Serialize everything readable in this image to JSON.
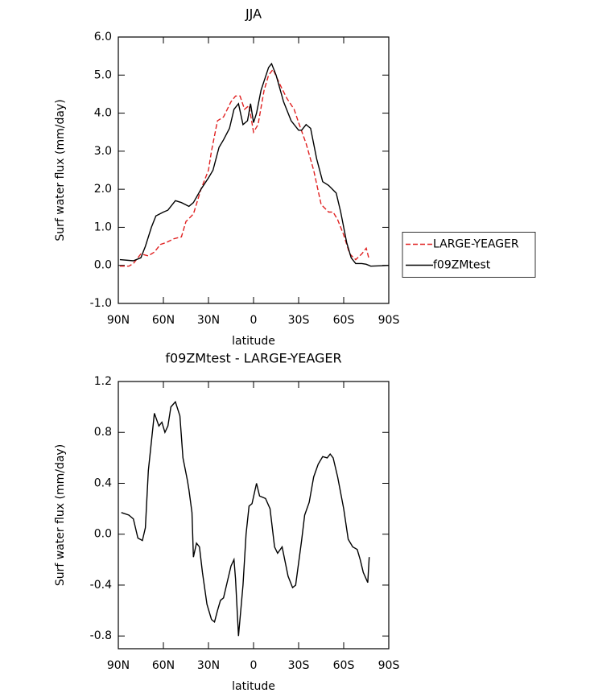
{
  "chart_data": [
    {
      "type": "line",
      "title": "JJA",
      "xlabel": "latitude",
      "ylabel": "Surf water flux (mm/day)",
      "xlim": [
        90,
        -90
      ],
      "ylim": [
        -1.0,
        6.0
      ],
      "xticks": [
        {
          "value": 90,
          "label": "90N"
        },
        {
          "value": 60,
          "label": "60N"
        },
        {
          "value": 30,
          "label": "30N"
        },
        0,
        {
          "value": -30,
          "label": "30S"
        },
        {
          "value": -60,
          "label": "60S"
        },
        {
          "value": -90,
          "label": "90S"
        }
      ],
      "yticks": [
        {
          "value": -1.0,
          "label": "-1.0"
        },
        {
          "value": 0,
          "label": "0.0"
        },
        {
          "value": 1.0,
          "label": "1.0"
        },
        {
          "value": 2.0,
          "label": "2.0"
        },
        {
          "value": 3.0,
          "label": "3.0"
        },
        {
          "value": 4.0,
          "label": "4.0"
        },
        {
          "value": 5.0,
          "label": "5.0"
        },
        {
          "value": 6.0,
          "label": "6.0"
        }
      ],
      "legend": "right",
      "series": [
        {
          "name": "LARGE-YEAGER",
          "color": "#e02020",
          "linestyle": "dashed",
          "x": [
            89,
            83,
            80,
            75,
            70,
            66,
            62,
            58,
            53,
            48,
            45,
            40,
            35,
            30,
            28,
            24,
            20,
            15,
            12,
            9,
            6,
            3,
            0,
            -3,
            -7,
            -10,
            -13,
            -17,
            -22,
            -27,
            -30,
            -35,
            -40,
            -45,
            -50,
            -53,
            -56,
            -60,
            -64,
            -68,
            -72,
            -75,
            -77
          ],
          "values": [
            -0.02,
            -0.02,
            0.05,
            0.3,
            0.25,
            0.35,
            0.55,
            0.6,
            0.7,
            0.75,
            1.15,
            1.35,
            2.0,
            2.5,
            3.0,
            3.8,
            3.9,
            4.3,
            4.45,
            4.45,
            4.1,
            4.2,
            3.5,
            3.7,
            4.6,
            5.0,
            5.15,
            4.8,
            4.4,
            4.1,
            3.75,
            3.2,
            2.5,
            1.6,
            1.4,
            1.4,
            1.2,
            0.8,
            0.3,
            0.15,
            0.3,
            0.45,
            0.15
          ]
        },
        {
          "name": "f09ZMtest",
          "color": "#000000",
          "linestyle": "solid",
          "x": [
            89,
            80,
            75,
            72,
            68,
            65,
            60,
            57,
            52,
            48,
            43,
            40,
            35,
            30,
            27,
            23,
            20,
            16,
            13,
            10,
            7,
            4,
            2,
            0,
            -2,
            -5,
            -10,
            -12,
            -15,
            -20,
            -25,
            -30,
            -32,
            -35,
            -38,
            -42,
            -46,
            -50,
            -55,
            -58,
            -62,
            -65,
            -68,
            -72,
            -75,
            -78,
            -85,
            -90
          ],
          "values": [
            0.15,
            0.12,
            0.2,
            0.5,
            1.0,
            1.3,
            1.4,
            1.45,
            1.7,
            1.65,
            1.55,
            1.65,
            2.0,
            2.3,
            2.5,
            3.1,
            3.3,
            3.6,
            4.1,
            4.25,
            3.7,
            3.8,
            4.25,
            3.75,
            4.0,
            4.6,
            5.2,
            5.3,
            5.0,
            4.3,
            3.8,
            3.55,
            3.55,
            3.7,
            3.6,
            2.8,
            2.2,
            2.1,
            1.9,
            1.4,
            0.6,
            0.2,
            0.05,
            0.05,
            0.03,
            -0.02,
            -0.01,
            0
          ]
        }
      ]
    },
    {
      "type": "line",
      "title": "f09ZMtest - LARGE-YEAGER",
      "xlabel": "latitude",
      "ylabel": "Surf water flux (mm/day)",
      "xlim": [
        90,
        -90
      ],
      "ylim": [
        -0.9,
        1.2
      ],
      "xticks": [
        {
          "value": 90,
          "label": "90N"
        },
        {
          "value": 60,
          "label": "60N"
        },
        {
          "value": 30,
          "label": "30N"
        },
        0,
        {
          "value": -30,
          "label": "30S"
        },
        {
          "value": -60,
          "label": "60S"
        },
        {
          "value": -90,
          "label": "90S"
        }
      ],
      "yticks": [
        -0.8,
        -0.4,
        {
          "value": 0,
          "label": "0.0"
        },
        0.4,
        0.8,
        1.2
      ],
      "series": [
        {
          "color": "#000000",
          "linestyle": "solid",
          "x": [
            88,
            83,
            80,
            77,
            74,
            72,
            70,
            66,
            63,
            61,
            59,
            57,
            55,
            52,
            49,
            47,
            44,
            43,
            41,
            40,
            38,
            36,
            34,
            31,
            28,
            26,
            24,
            22,
            20,
            18,
            15,
            13,
            12,
            10,
            7,
            5,
            3,
            1,
            -2,
            -4,
            -8,
            -11,
            -14,
            -16,
            -19,
            -23,
            -26,
            -28,
            -32,
            -34,
            -37,
            -40,
            -43,
            -46,
            -49,
            -51,
            -53,
            -56,
            -60,
            -63,
            -66,
            -69,
            -71,
            -73,
            -76,
            -77
          ],
          "values": [
            0.17,
            0.15,
            0.12,
            -0.03,
            -0.05,
            0.05,
            0.5,
            0.95,
            0.85,
            0.88,
            0.8,
            0.85,
            1.0,
            1.04,
            0.93,
            0.6,
            0.42,
            0.35,
            0.17,
            -0.18,
            -0.07,
            -0.1,
            -0.3,
            -0.55,
            -0.67,
            -0.69,
            -0.6,
            -0.52,
            -0.5,
            -0.4,
            -0.25,
            -0.2,
            -0.35,
            -0.8,
            -0.4,
            0.0,
            0.22,
            0.24,
            0.4,
            0.3,
            0.28,
            0.2,
            -0.1,
            -0.15,
            -0.1,
            -0.33,
            -0.42,
            -0.4,
            -0.05,
            0.15,
            0.25,
            0.45,
            0.55,
            0.61,
            0.6,
            0.63,
            0.6,
            0.45,
            0.2,
            -0.04,
            -0.1,
            -0.12,
            -0.2,
            -0.3,
            -0.38,
            -0.18
          ]
        }
      ]
    }
  ]
}
